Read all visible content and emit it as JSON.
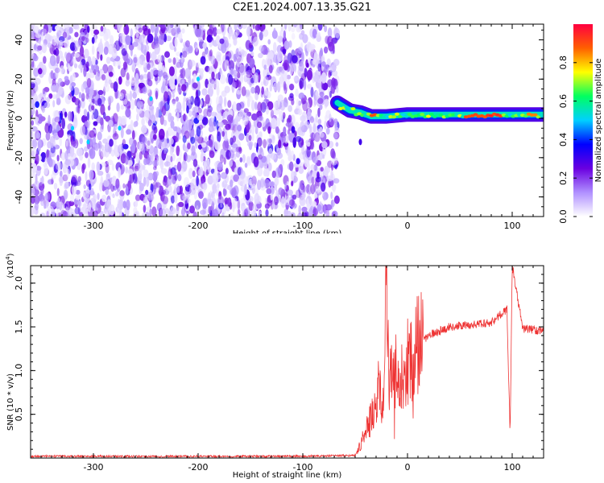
{
  "title": "C2E1.2024.007.13.35.G21",
  "chart_data": [
    {
      "type": "heatmap",
      "xlabel": "Height of straight line (km)",
      "ylabel": "Frequency (Hz)",
      "xlim": [
        -360,
        130
      ],
      "ylim": [
        -50,
        48
      ],
      "xticks": [
        -300,
        -200,
        -100,
        0,
        100
      ],
      "yticks": [
        -40,
        -20,
        0,
        20,
        40
      ],
      "colorbar": {
        "label": "Normalized spectral amplitude",
        "range": [
          0.0,
          1.0
        ],
        "ticks": [
          0.0,
          0.2,
          0.4,
          0.6,
          0.8
        ],
        "colors": [
          "#ffffff",
          "#b090ff",
          "#6a00e0",
          "#0000ff",
          "#00d0ff",
          "#00ff60",
          "#ffff00",
          "#ff6000",
          "#ff0040"
        ]
      },
      "regions": [
        {
          "x_range": [
            -360,
            -67
          ],
          "freq_range": [
            -50,
            48
          ],
          "amplitude": "noise 0.05-0.3"
        },
        {
          "x_range": [
            -67,
            130
          ],
          "freq_range": [
            0,
            5
          ],
          "amplitude": "signal 0.4-0.95, peak near x=60..90"
        }
      ],
      "tracks": [
        {
          "x": -67,
          "freq": 8
        },
        {
          "x": -55,
          "freq": 4
        },
        {
          "x": -45,
          "freq": 3
        },
        {
          "x": -35,
          "freq": 1
        },
        {
          "x": -20,
          "freq": 1
        },
        {
          "x": 0,
          "freq": 2
        },
        {
          "x": 40,
          "freq": 2
        },
        {
          "x": 80,
          "freq": 2
        },
        {
          "x": 100,
          "freq": 2
        },
        {
          "x": 130,
          "freq": 2
        }
      ]
    },
    {
      "type": "line",
      "xlabel": "Height of straight line (km)",
      "ylabel": "SNR (10 * v/v)",
      "ylabel_multiplier": "(x10",
      "ylabel_multiplier_exp": "4",
      "xlim": [
        -360,
        130
      ],
      "ylim": [
        0,
        2.2
      ],
      "xticks": [
        -300,
        -200,
        -100,
        0,
        100
      ],
      "yticks": [
        0.5,
        1.0,
        1.5,
        2.0
      ],
      "series": [
        {
          "color": "#ee3333",
          "x": [
            -360,
            -300,
            -200,
            -100,
            -50,
            -45,
            -40,
            -35,
            -30,
            -28,
            -25,
            -22,
            -20,
            -18,
            -15,
            -12,
            -10,
            -5,
            0,
            5,
            10,
            20,
            30,
            40,
            60,
            80,
            95,
            98,
            100,
            110,
            120,
            130
          ],
          "y": [
            0.02,
            0.02,
            0.02,
            0.02,
            0.03,
            0.15,
            0.3,
            0.45,
            0.55,
            0.9,
            0.6,
            1.0,
            2.15,
            0.9,
            0.95,
            1.05,
            0.9,
            1.0,
            1.1,
            1.15,
            1.3,
            1.4,
            1.45,
            1.5,
            1.52,
            1.55,
            1.7,
            0.28,
            2.2,
            1.48,
            1.47,
            1.45
          ]
        }
      ]
    }
  ]
}
